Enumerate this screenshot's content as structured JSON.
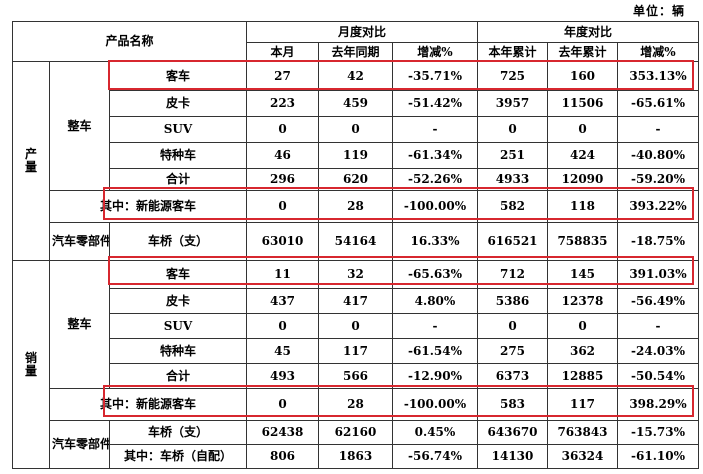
{
  "unit_label": "单位：辆",
  "header": {
    "product_name": "产品名称",
    "monthly_group": "月度对比",
    "yearly_group": "年度对比",
    "cols": [
      "本月",
      "去年同期",
      "增减%",
      "本年累计",
      "去年累计",
      "增减%"
    ]
  },
  "production": {
    "section_label": [
      "产",
      "量"
    ],
    "vehicle_group": "整车",
    "parts_group": "汽车零部件",
    "rows": [
      {
        "name": "客车",
        "values": [
          "27",
          "42",
          "-35.71%",
          "725",
          "160",
          "353.13%"
        ]
      },
      {
        "name": "皮卡",
        "values": [
          "223",
          "459",
          "-51.42%",
          "3957",
          "11506",
          "-65.61%"
        ]
      },
      {
        "name": "SUV",
        "values": [
          "0",
          "0",
          "-",
          "0",
          "0",
          "-"
        ]
      },
      {
        "name": "特种车",
        "values": [
          "46",
          "119",
          "-61.34%",
          "251",
          "424",
          "-40.80%"
        ]
      },
      {
        "name": "合计",
        "values": [
          "296",
          "620",
          "-52.26%",
          "4933",
          "12090",
          "-59.20%"
        ]
      },
      {
        "name": "其中：新能源客车",
        "values": [
          "0",
          "28",
          "-100.00%",
          "582",
          "118",
          "393.22%"
        ]
      }
    ],
    "parts_rows": [
      {
        "name": "车桥（支）",
        "values": [
          "63010",
          "54164",
          "16.33%",
          "616521",
          "758835",
          "-18.75%"
        ]
      }
    ]
  },
  "sales": {
    "section_label": [
      "销",
      "量"
    ],
    "vehicle_group": "整车",
    "parts_group": "汽车零部件",
    "rows": [
      {
        "name": "客车",
        "values": [
          "11",
          "32",
          "-65.63%",
          "712",
          "145",
          "391.03%"
        ]
      },
      {
        "name": "皮卡",
        "values": [
          "437",
          "417",
          "4.80%",
          "5386",
          "12378",
          "-56.49%"
        ]
      },
      {
        "name": "SUV",
        "values": [
          "0",
          "0",
          "-",
          "0",
          "0",
          "-"
        ]
      },
      {
        "name": "特种车",
        "values": [
          "45",
          "117",
          "-61.54%",
          "275",
          "362",
          "-24.03%"
        ]
      },
      {
        "name": "合计",
        "values": [
          "493",
          "566",
          "-12.90%",
          "6373",
          "12885",
          "-50.54%"
        ]
      },
      {
        "name": "其中：新能源客车",
        "values": [
          "0",
          "28",
          "-100.00%",
          "583",
          "117",
          "398.29%"
        ]
      }
    ],
    "parts_rows": [
      {
        "name": "车桥（支）",
        "values": [
          "62438",
          "62160",
          "0.45%",
          "643670",
          "763843",
          "-15.73%"
        ]
      },
      {
        "name": "其中：车桥（自配）",
        "values": [
          "806",
          "1863",
          "-56.74%",
          "14130",
          "36324",
          "-61.10%"
        ]
      }
    ]
  },
  "highlight_color": "#d7272f"
}
